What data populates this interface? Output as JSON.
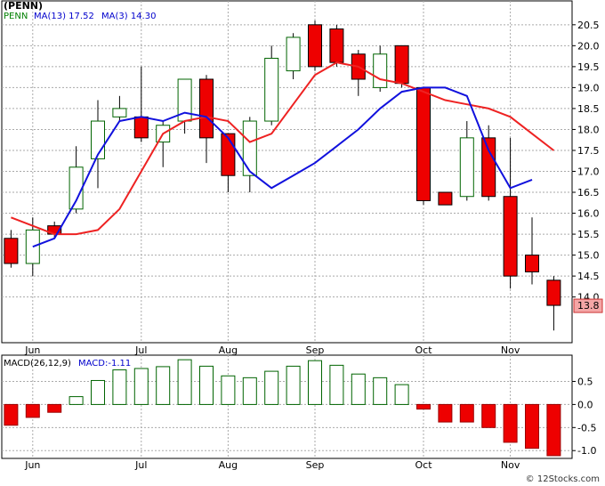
{
  "chart_data": [
    {
      "type": "candlestick",
      "ticker": "PENN",
      "legend": [
        {
          "label": "PENN",
          "color": "#008000"
        },
        {
          "label": "MA(13)",
          "value": "17.52",
          "color": "#0000cc"
        },
        {
          "label": "MA(3)",
          "value": "14.30",
          "color": "#0000cc"
        }
      ],
      "ylim": [
        13.1,
        20.9
      ],
      "yticks": [
        "14.0",
        "14.5",
        "15.0",
        "15.5",
        "16.0",
        "16.5",
        "17.0",
        "17.5",
        "18.0",
        "18.5",
        "19.0",
        "19.5",
        "20.0",
        "20.5"
      ],
      "last_price_label": "13.8",
      "x_labels": [
        {
          "label": "Jun",
          "index": 1
        },
        {
          "label": "Jul",
          "index": 6
        },
        {
          "label": "Aug",
          "index": 10
        },
        {
          "label": "Sep",
          "index": 14
        },
        {
          "label": "Oct",
          "index": 19
        },
        {
          "label": "Nov",
          "index": 23
        }
      ],
      "candles": [
        {
          "o": 15.4,
          "c": 14.8,
          "h": 15.6,
          "l": 14.7
        },
        {
          "o": 14.8,
          "c": 15.6,
          "h": 15.9,
          "l": 14.5
        },
        {
          "o": 15.7,
          "c": 15.5,
          "h": 15.8,
          "l": 15.4
        },
        {
          "o": 16.1,
          "c": 17.1,
          "h": 17.6,
          "l": 16.0
        },
        {
          "o": 17.3,
          "c": 18.2,
          "h": 18.7,
          "l": 16.6
        },
        {
          "o": 18.3,
          "c": 18.5,
          "h": 18.8,
          "l": 18.2
        },
        {
          "o": 18.3,
          "c": 17.8,
          "h": 19.5,
          "l": 17.7
        },
        {
          "o": 17.7,
          "c": 18.1,
          "h": 18.2,
          "l": 17.1
        },
        {
          "o": 18.2,
          "c": 19.2,
          "h": 19.2,
          "l": 17.9
        },
        {
          "o": 19.2,
          "c": 17.8,
          "h": 19.3,
          "l": 17.2
        },
        {
          "o": 17.9,
          "c": 16.9,
          "h": 17.9,
          "l": 16.5
        },
        {
          "o": 16.9,
          "c": 18.2,
          "h": 18.3,
          "l": 16.5
        },
        {
          "o": 18.2,
          "c": 19.7,
          "h": 20.0,
          "l": 18.1
        },
        {
          "o": 19.4,
          "c": 20.2,
          "h": 20.3,
          "l": 19.2
        },
        {
          "o": 20.5,
          "c": 19.5,
          "h": 20.6,
          "l": 19.4
        },
        {
          "o": 20.4,
          "c": 19.6,
          "h": 20.5,
          "l": 19.5
        },
        {
          "o": 19.8,
          "c": 19.2,
          "h": 19.9,
          "l": 18.8
        },
        {
          "o": 19.0,
          "c": 19.8,
          "h": 20.0,
          "l": 18.9
        },
        {
          "o": 20.0,
          "c": 19.1,
          "h": 20.0,
          "l": 19.0
        },
        {
          "o": 19.0,
          "c": 16.3,
          "h": 19.0,
          "l": 16.2
        },
        {
          "o": 16.5,
          "c": 16.2,
          "h": 16.5,
          "l": 16.2
        },
        {
          "o": 16.4,
          "c": 17.8,
          "h": 18.2,
          "l": 16.3
        },
        {
          "o": 17.8,
          "c": 16.4,
          "h": 18.1,
          "l": 16.3
        },
        {
          "o": 16.4,
          "c": 14.5,
          "h": 17.8,
          "l": 14.2
        },
        {
          "o": 15.0,
          "c": 14.6,
          "h": 15.9,
          "l": 14.3
        },
        {
          "o": 14.4,
          "c": 13.8,
          "h": 14.5,
          "l": 13.2
        }
      ],
      "ma_red": [
        15.9,
        15.7,
        15.5,
        15.5,
        15.6,
        16.1,
        17.0,
        17.9,
        18.2,
        18.3,
        18.2,
        17.7,
        17.9,
        18.6,
        19.3,
        19.6,
        19.5,
        19.2,
        19.1,
        18.9,
        18.7,
        18.6,
        18.5,
        18.3,
        17.9,
        17.5
      ],
      "ma_red_start": 0,
      "ma_blue": [
        15.2,
        15.4,
        16.3,
        17.4,
        18.2,
        18.3,
        18.2,
        18.4,
        18.3,
        17.8,
        17.0,
        16.6,
        16.9,
        17.2,
        17.6,
        18.0,
        18.5,
        18.9,
        19.0,
        19.0,
        18.8,
        17.5,
        16.6,
        16.8
      ],
      "ma_blue_start": 1
    },
    {
      "type": "bar",
      "legend": [
        {
          "label": "MACD(26,12,9)",
          "color": "#000000"
        },
        {
          "label": "MACD:-1.11",
          "color": "#0000cc"
        }
      ],
      "ylim": [
        -1.15,
        1.05
      ],
      "yticks": [
        "0.5",
        "0.0",
        "-0.5",
        "-1.0"
      ],
      "values": [
        -0.45,
        -0.28,
        -0.17,
        0.17,
        0.52,
        0.75,
        0.78,
        0.82,
        0.97,
        0.83,
        0.62,
        0.58,
        0.72,
        0.83,
        0.95,
        0.85,
        0.66,
        0.58,
        0.43,
        -0.1,
        -0.38,
        -0.38,
        -0.5,
        -0.82,
        -0.95,
        -1.11
      ]
    }
  ],
  "brand": "© 12Stocks.com"
}
